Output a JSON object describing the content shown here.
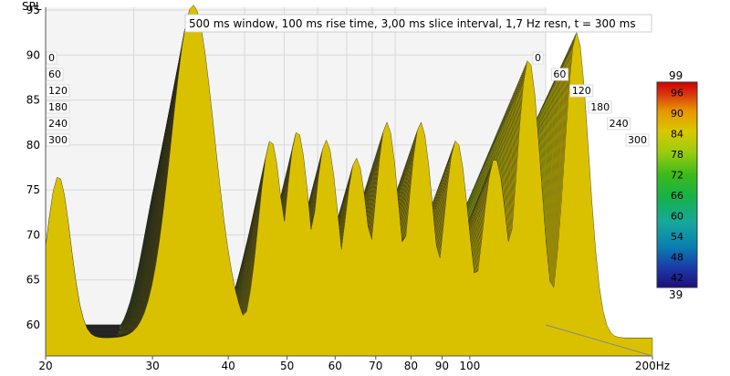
{
  "chart_data": {
    "type": "waterfall",
    "title": "500 ms window, 100 ms rise time, 3,00 ms slice interval, 1,7 Hz resn, t = 300 ms",
    "ylabel": "SPL",
    "xlabel": "",
    "x_unit": "Hz",
    "x_scale": "log",
    "xlim": [
      20,
      200
    ],
    "ylim": [
      60,
      99
    ],
    "x_ticks": [
      {
        "value": 20,
        "label": "20"
      },
      {
        "value": 30,
        "label": "30"
      },
      {
        "value": 40,
        "label": "40"
      },
      {
        "value": 50,
        "label": "50"
      },
      {
        "value": 60,
        "label": "60"
      },
      {
        "value": 70,
        "label": "70"
      },
      {
        "value": 80,
        "label": "80"
      },
      {
        "value": 90,
        "label": "90"
      },
      {
        "value": 100,
        "label": "100"
      },
      {
        "value": 200,
        "label": "200Hz"
      }
    ],
    "y_ticks": [
      {
        "value": 60,
        "label": "60"
      },
      {
        "value": 65,
        "label": "65"
      },
      {
        "value": 70,
        "label": "70"
      },
      {
        "value": 75,
        "label": "75"
      },
      {
        "value": 80,
        "label": "80"
      },
      {
        "value": 85,
        "label": "85"
      },
      {
        "value": 90,
        "label": "90"
      },
      {
        "value": 95,
        "label": "95"
      }
    ],
    "time_ticks_ms": [
      {
        "value": 0,
        "label": "0"
      },
      {
        "value": 60,
        "label": "60"
      },
      {
        "value": 120,
        "label": "120"
      },
      {
        "value": 180,
        "label": "180"
      },
      {
        "value": 240,
        "label": "240"
      },
      {
        "value": 300,
        "label": "300"
      }
    ],
    "slice_count": 100,
    "slice_interval_ms": 3,
    "first_slice_resonances": [
      {
        "f": 21,
        "level": 80
      },
      {
        "f": 35,
        "level": 99
      },
      {
        "f": 47,
        "level": 84
      },
      {
        "f": 52,
        "level": 85
      },
      {
        "f": 58,
        "level": 84
      },
      {
        "f": 65,
        "level": 82
      },
      {
        "f": 73,
        "level": 86
      },
      {
        "f": 83,
        "level": 86
      },
      {
        "f": 95,
        "level": 84
      },
      {
        "f": 110,
        "level": 82
      },
      {
        "f": 125,
        "level": 93
      },
      {
        "f": 150,
        "level": 96
      }
    ],
    "colorbar": {
      "min": 39,
      "max": 99,
      "min_label": "39",
      "max_label": "99",
      "ticks": [
        {
          "value": 96,
          "label": "96"
        },
        {
          "value": 90,
          "label": "90"
        },
        {
          "value": 84,
          "label": "84"
        },
        {
          "value": 78,
          "label": "78"
        },
        {
          "value": 72,
          "label": "72"
        },
        {
          "value": 66,
          "label": "66"
        },
        {
          "value": 60,
          "label": "60"
        },
        {
          "value": 54,
          "label": "54"
        },
        {
          "value": 48,
          "label": "48"
        },
        {
          "value": 42,
          "label": "42"
        }
      ],
      "colors": [
        "#1e0e7a",
        "#1a3da8",
        "#0b7fb0",
        "#17a89a",
        "#16b24a",
        "#3cba1a",
        "#9ccc10",
        "#d8c800",
        "#e89600",
        "#d83810",
        "#d00000"
      ]
    }
  }
}
